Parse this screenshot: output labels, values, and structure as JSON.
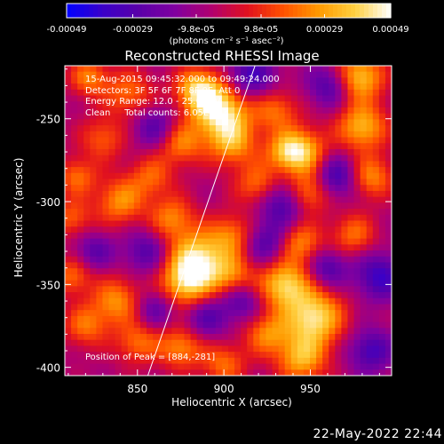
{
  "colorbar": {
    "ticks": [
      "-0.00049",
      "-0.00029",
      "-9.8e-05",
      "9.8e-05",
      "0.00029",
      "0.00049"
    ],
    "unit_label": "(photons cm⁻² s⁻¹ asec⁻²)",
    "range": [
      -0.00049,
      0.00049
    ],
    "colors": [
      "#0000ff",
      "#3a00c8",
      "#5a00a8",
      "#8000a0",
      "#b00070",
      "#e01020",
      "#ff5000",
      "#ff9a00",
      "#ffd040",
      "#ffffff"
    ]
  },
  "chart_data": {
    "type": "heatmap",
    "title": "Reconstructed RHESSI Image",
    "xlabel": "Heliocentric X (arcsec)",
    "ylabel": "Heliocentric Y (arcsec)",
    "xlim": [
      808,
      997
    ],
    "ylim": [
      -405,
      -218
    ],
    "x_ticks": [
      850,
      900,
      950
    ],
    "y_ticks": [
      -250,
      -300,
      -350,
      -400
    ],
    "limb_line": [
      [
        856,
        -405
      ],
      [
        918,
        -218
      ]
    ],
    "peak": [
      884,
      -281
    ],
    "annotations": [
      "15-Aug-2015 09:45:32.000 to 09:49:24.000",
      "Detectors: 3F 5F 6F 7F 8F 9F, Att 0",
      "Energy Range: 12.0 - 25.0 keV",
      "Clean     Total counts: 6.05E+03"
    ],
    "peak_label": "Position of Peak = [884,-281]",
    "blobs": [
      {
        "x": 898,
        "y": -245,
        "v": 1.0,
        "s": 12
      },
      {
        "x": 885,
        "y": -232,
        "v": 0.75,
        "s": 9
      },
      {
        "x": 875,
        "y": -265,
        "v": 0.55,
        "s": 9
      },
      {
        "x": 905,
        "y": -265,
        "v": 0.6,
        "s": 10
      },
      {
        "x": 845,
        "y": -235,
        "v": 0.5,
        "s": 10
      },
      {
        "x": 822,
        "y": -225,
        "v": 0.55,
        "s": 8
      },
      {
        "x": 830,
        "y": -262,
        "v": 0.45,
        "s": 9
      },
      {
        "x": 815,
        "y": -285,
        "v": 0.5,
        "s": 8
      },
      {
        "x": 840,
        "y": -300,
        "v": 0.6,
        "s": 10
      },
      {
        "x": 812,
        "y": -310,
        "v": 0.45,
        "s": 8
      },
      {
        "x": 858,
        "y": -285,
        "v": 0.45,
        "s": 9
      },
      {
        "x": 870,
        "y": -310,
        "v": 0.55,
        "s": 9
      },
      {
        "x": 885,
        "y": -335,
        "v": 0.95,
        "s": 12
      },
      {
        "x": 878,
        "y": -350,
        "v": 0.7,
        "s": 10
      },
      {
        "x": 905,
        "y": -320,
        "v": 0.5,
        "s": 9
      },
      {
        "x": 905,
        "y": -345,
        "v": 0.5,
        "s": 9
      },
      {
        "x": 920,
        "y": -290,
        "v": 0.55,
        "s": 9
      },
      {
        "x": 930,
        "y": -245,
        "v": 0.5,
        "s": 9
      },
      {
        "x": 935,
        "y": -270,
        "v": 0.45,
        "s": 8
      },
      {
        "x": 945,
        "y": -270,
        "v": 0.8,
        "s": 10
      },
      {
        "x": 948,
        "y": -295,
        "v": 0.7,
        "s": 9
      },
      {
        "x": 944,
        "y": -325,
        "v": 0.6,
        "s": 9
      },
      {
        "x": 978,
        "y": -225,
        "v": 0.85,
        "s": 10
      },
      {
        "x": 980,
        "y": -255,
        "v": 0.75,
        "s": 10
      },
      {
        "x": 985,
        "y": -285,
        "v": 0.6,
        "s": 9
      },
      {
        "x": 975,
        "y": -320,
        "v": 0.5,
        "s": 9
      },
      {
        "x": 952,
        "y": -370,
        "v": 0.95,
        "s": 12
      },
      {
        "x": 935,
        "y": -350,
        "v": 0.85,
        "s": 10
      },
      {
        "x": 945,
        "y": -395,
        "v": 0.7,
        "s": 10
      },
      {
        "x": 925,
        "y": -380,
        "v": 0.55,
        "s": 9
      },
      {
        "x": 838,
        "y": -360,
        "v": 0.6,
        "s": 10
      },
      {
        "x": 812,
        "y": -345,
        "v": 0.5,
        "s": 8
      },
      {
        "x": 820,
        "y": -375,
        "v": 0.5,
        "s": 9
      },
      {
        "x": 850,
        "y": -385,
        "v": 0.5,
        "s": 9
      },
      {
        "x": 875,
        "y": -388,
        "v": 0.6,
        "s": 9
      },
      {
        "x": 900,
        "y": -398,
        "v": 0.5,
        "s": 9
      },
      {
        "x": 915,
        "y": -225,
        "v": -0.6,
        "s": 10
      },
      {
        "x": 935,
        "y": -300,
        "v": -0.65,
        "s": 10
      },
      {
        "x": 962,
        "y": -230,
        "v": -0.55,
        "s": 9
      },
      {
        "x": 965,
        "y": -285,
        "v": -0.6,
        "s": 9
      },
      {
        "x": 925,
        "y": -325,
        "v": -0.5,
        "s": 9
      },
      {
        "x": 990,
        "y": -345,
        "v": -0.6,
        "s": 10
      },
      {
        "x": 985,
        "y": -390,
        "v": -0.55,
        "s": 9
      },
      {
        "x": 960,
        "y": -340,
        "v": -0.5,
        "s": 8
      },
      {
        "x": 860,
        "y": -255,
        "v": -0.45,
        "s": 9
      },
      {
        "x": 855,
        "y": -330,
        "v": -0.45,
        "s": 9
      },
      {
        "x": 825,
        "y": -330,
        "v": -0.4,
        "s": 8
      },
      {
        "x": 890,
        "y": -370,
        "v": -0.45,
        "s": 9
      },
      {
        "x": 910,
        "y": -360,
        "v": -0.45,
        "s": 8
      },
      {
        "x": 860,
        "y": -365,
        "v": -0.4,
        "s": 8
      }
    ]
  },
  "timestamp": "22-May-2022 22:44"
}
